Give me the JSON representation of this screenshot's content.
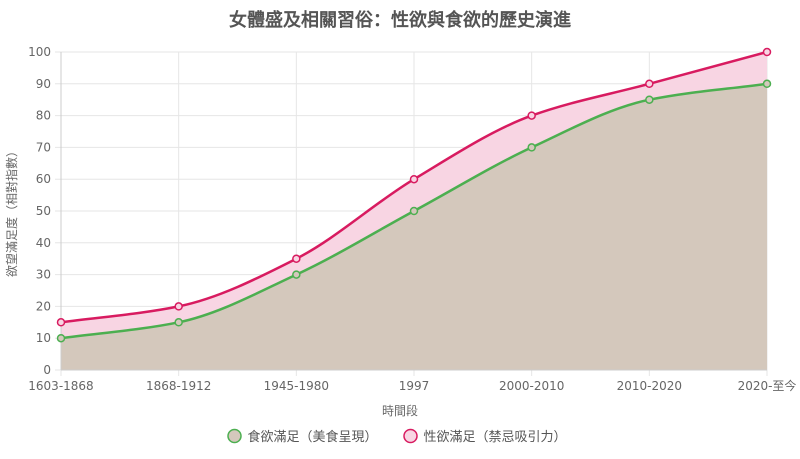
{
  "chart_data": {
    "type": "area",
    "title": "女體盛及相關習俗：性欲與食欲的歷史演進",
    "xlabel": "時間段",
    "ylabel": "欲望滿足度（相對指數）",
    "categories": [
      "1603-1868",
      "1868-1912",
      "1945-1980",
      "1997",
      "2000-2010",
      "2010-2020",
      "2020-至今"
    ],
    "ylim": [
      0,
      100
    ],
    "yticks": [
      0,
      10,
      20,
      30,
      40,
      50,
      60,
      70,
      80,
      90,
      100
    ],
    "grid": true,
    "legend_position": "bottom",
    "series": [
      {
        "name": "食欲滿足（美食呈現）",
        "values": [
          10,
          15,
          30,
          50,
          70,
          85,
          90
        ],
        "line_color": "#4caf50",
        "fill_color": "#d4c8bc"
      },
      {
        "name": "性欲滿足（禁忌吸引力）",
        "values": [
          15,
          20,
          35,
          60,
          80,
          90,
          100
        ],
        "line_color": "#d81b60",
        "fill_color": "#f8d5e3"
      }
    ]
  }
}
